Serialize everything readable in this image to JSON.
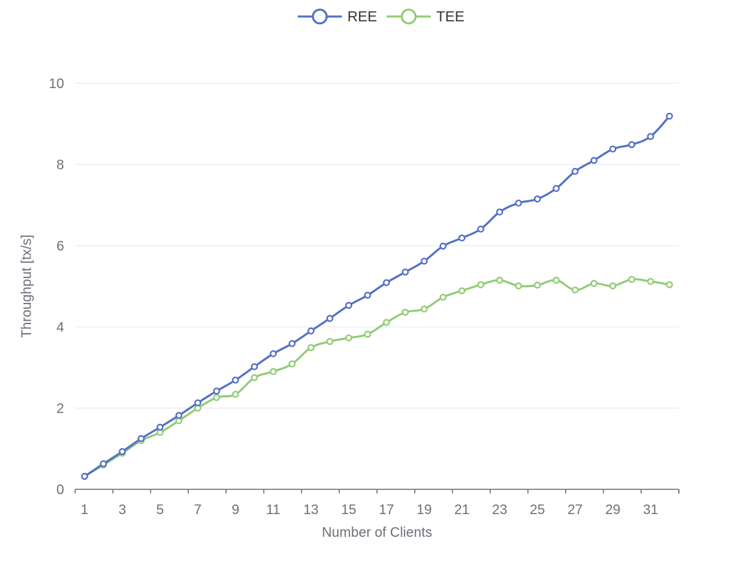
{
  "chart_data": {
    "type": "line",
    "xlabel": "Number of Clients",
    "ylabel": "Throughput [tx/s]",
    "ylim": [
      0,
      10
    ],
    "yticks": [
      "0",
      "2",
      "4",
      "6",
      "8",
      "10"
    ],
    "x": [
      1,
      2,
      3,
      4,
      5,
      6,
      7,
      8,
      9,
      10,
      11,
      12,
      13,
      14,
      15,
      16,
      17,
      18,
      19,
      20,
      21,
      22,
      23,
      24,
      25,
      26,
      27,
      28,
      29,
      30,
      31,
      32
    ],
    "xticks": [
      "1",
      "3",
      "5",
      "7",
      "9",
      "11",
      "13",
      "15",
      "17",
      "19",
      "21",
      "23",
      "25",
      "27",
      "29",
      "31"
    ],
    "grid": true,
    "legend_position": "top-center",
    "series": [
      {
        "name": "REE",
        "color": "#5470c6",
        "values": [
          0.32,
          0.63,
          0.93,
          1.25,
          1.53,
          1.82,
          2.13,
          2.42,
          2.69,
          3.02,
          3.34,
          3.59,
          3.9,
          4.21,
          4.53,
          4.78,
          5.09,
          5.35,
          5.62,
          5.99,
          6.19,
          6.41,
          6.83,
          7.05,
          7.15,
          7.41,
          7.83,
          8.1,
          8.38,
          8.49,
          8.69,
          9.19
        ]
      },
      {
        "name": "TEE",
        "color": "#91cc75",
        "values": [
          0.32,
          0.6,
          0.89,
          1.2,
          1.4,
          1.69,
          2.0,
          2.26,
          2.34,
          2.75,
          2.9,
          3.09,
          3.49,
          3.64,
          3.73,
          3.82,
          4.11,
          4.36,
          4.44,
          4.73,
          4.89,
          5.04,
          5.15,
          5.01,
          5.03,
          5.15,
          4.91,
          5.07,
          5.01,
          5.17,
          5.12,
          5.04
        ]
      }
    ]
  }
}
